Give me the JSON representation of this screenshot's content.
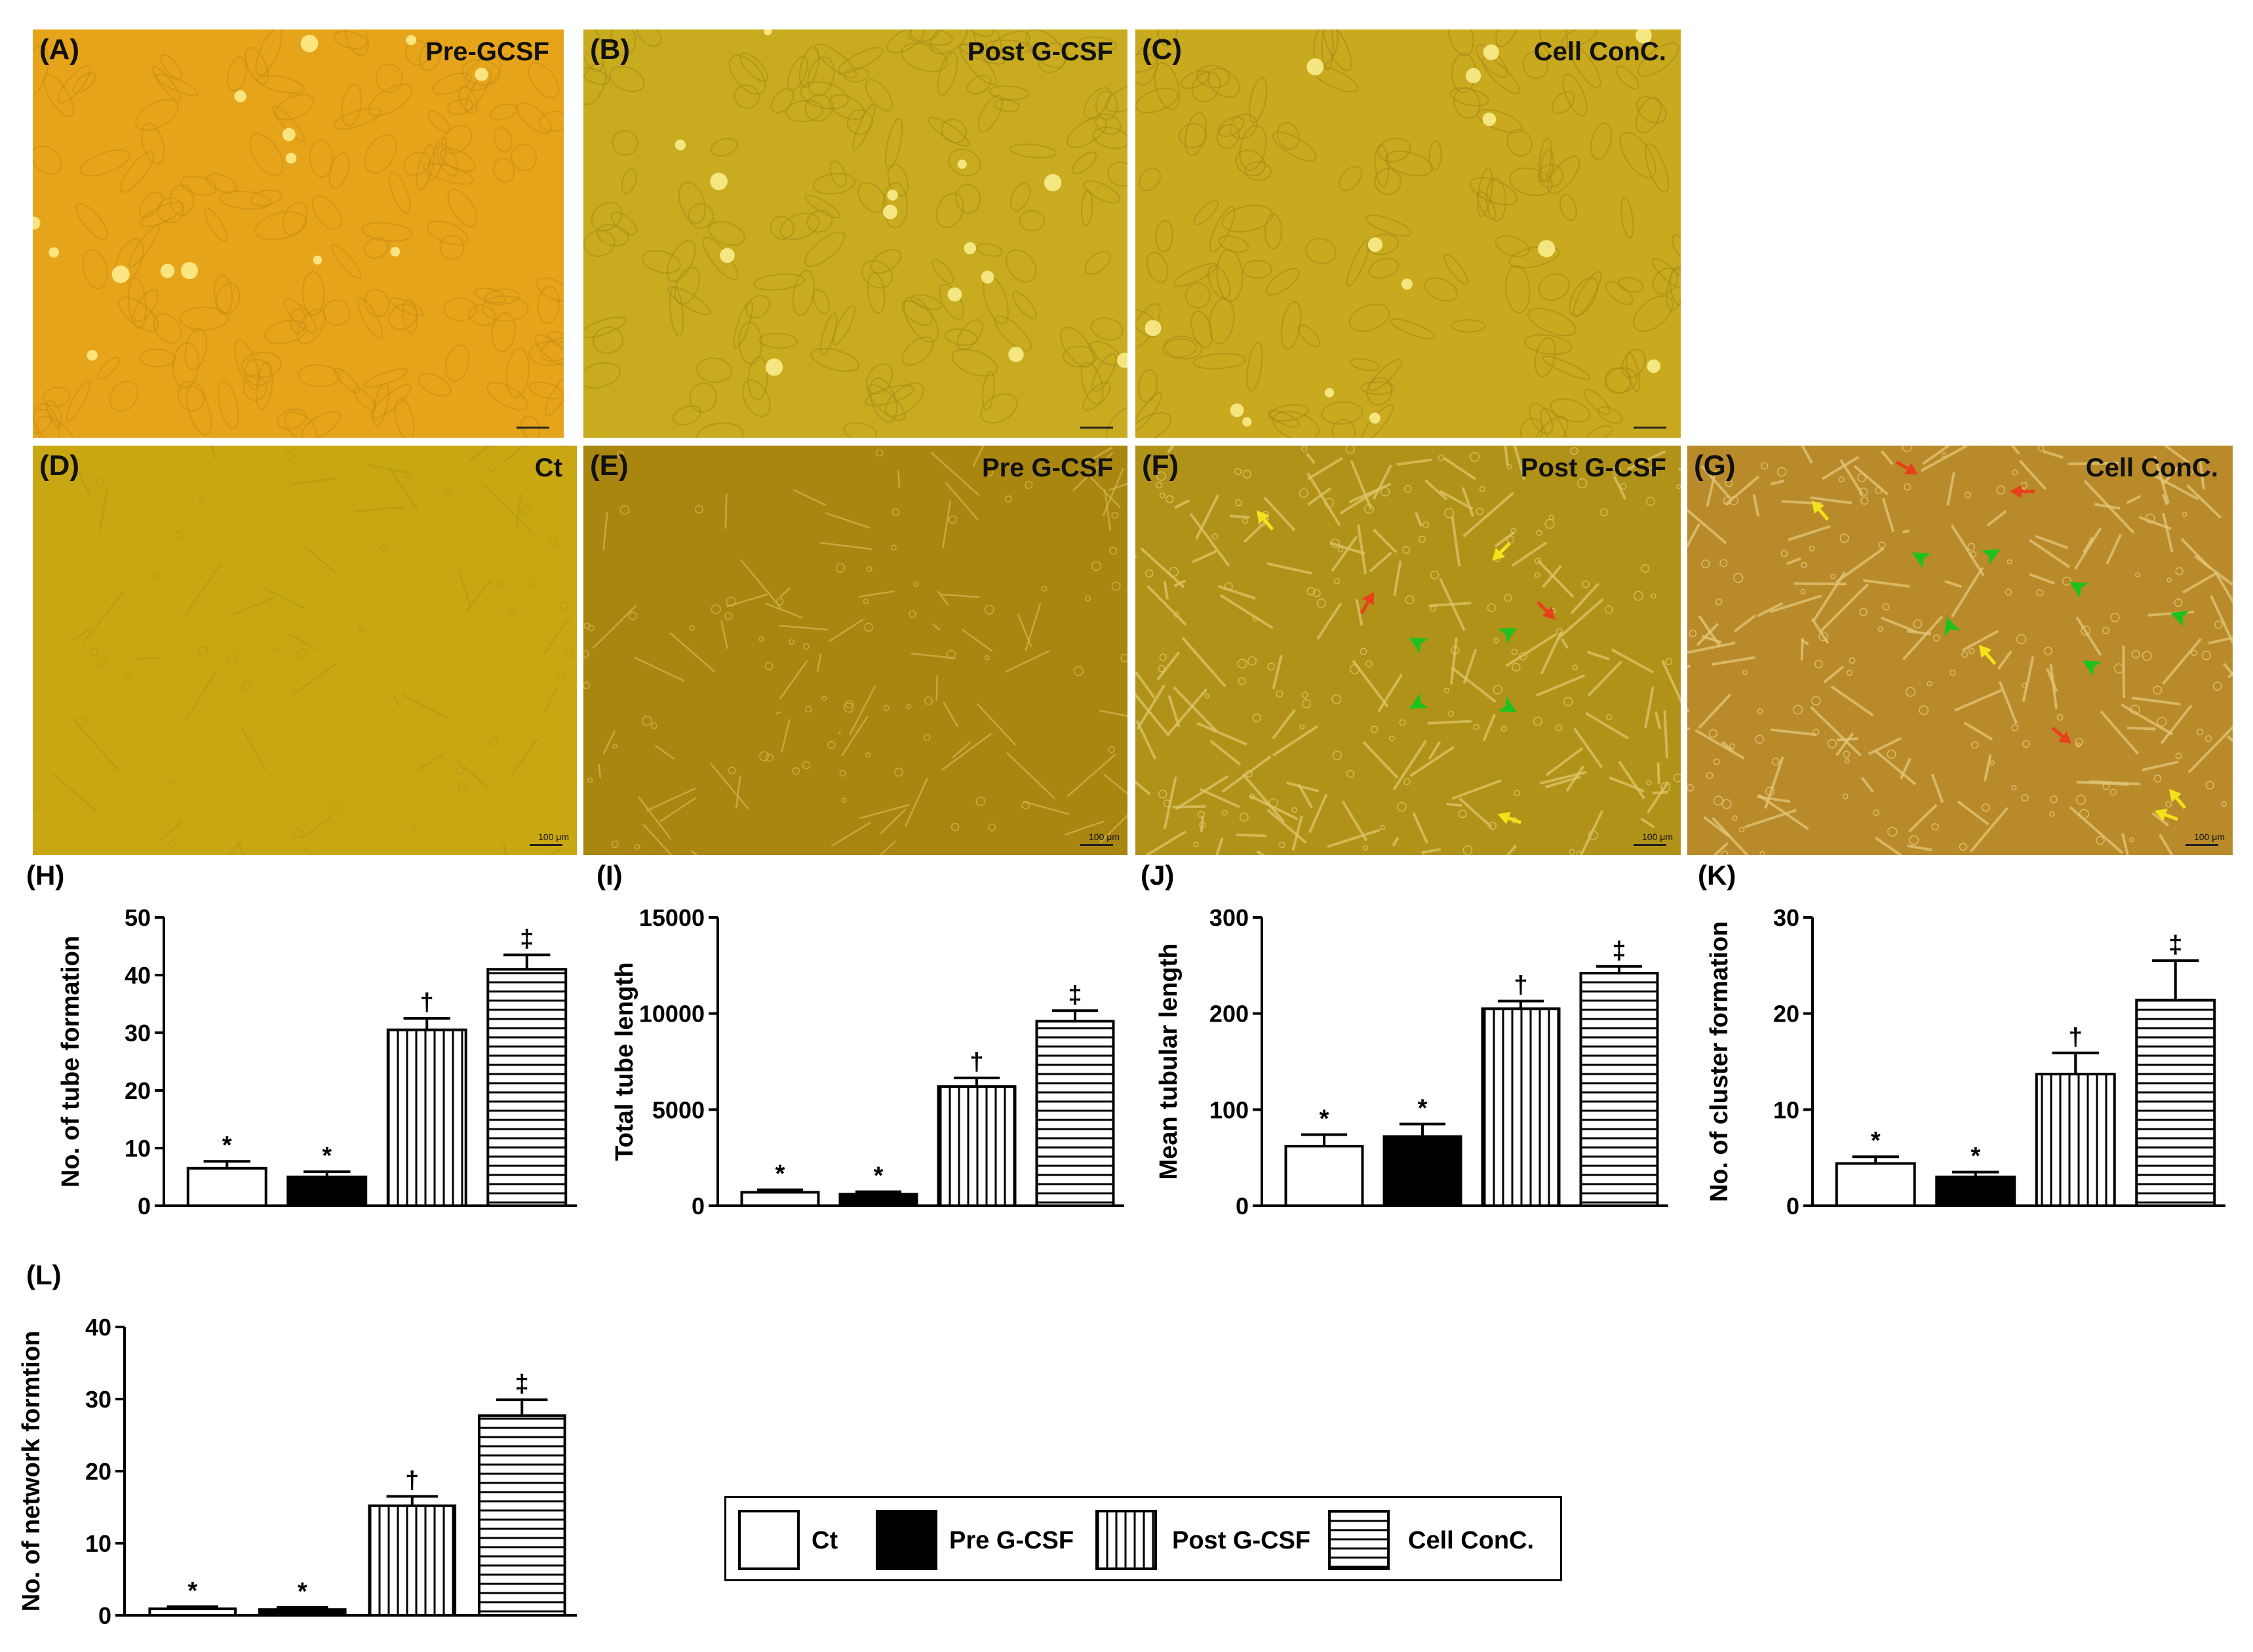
{
  "photos": [
    {
      "label": "(A)",
      "title": "Pre-GCSF",
      "scale": "",
      "bg": "#e6a41a",
      "tone": "#f3b62b",
      "cells": "#c78e18",
      "kind": "cells"
    },
    {
      "label": "(B)",
      "title": "Post G-CSF",
      "scale": "",
      "bg": "#c8ab1f",
      "tone": "#d6b92a",
      "cells": "#a88c18",
      "kind": "cells"
    },
    {
      "label": "(C)",
      "title": "Cell ConC.",
      "scale": "",
      "bg": "#c9a91e",
      "tone": "#d8ba2c",
      "cells": "#a68a17",
      "kind": "cells"
    },
    {
      "label": "(D)",
      "title": "Ct",
      "scale": "100 μm",
      "bg": "#c9a712",
      "tone": "#d4b31c",
      "cells": "#b79915",
      "kind": "tubes-sparse"
    },
    {
      "label": "(E)",
      "title": "Pre G-CSF",
      "scale": "100 μm",
      "bg": "#a88610",
      "tone": "#b8951a",
      "cells": "#d2b552",
      "kind": "tubes-mid"
    },
    {
      "label": "(F)",
      "title": "Post G-CSF",
      "scale": "100 μm",
      "bg": "#b09218",
      "tone": "#c0a028",
      "cells": "#dcc66a",
      "kind": "tubes-dense"
    },
    {
      "label": "(G)",
      "title": "Cell ConC.",
      "scale": "100 μm",
      "bg": "#b98a2a",
      "tone": "#c89a36",
      "cells": "#e2c87a",
      "kind": "tubes-dense"
    }
  ],
  "arrows": {
    "yellow": "#f2e21a",
    "red": "#e8401c",
    "green": "#1ec21e"
  },
  "categories": [
    "Ct",
    "Pre G-CSF",
    "Post G-CSF",
    "Cell ConC."
  ],
  "legend": {
    "title": "",
    "items": [
      {
        "label": "Ct",
        "pattern": "open"
      },
      {
        "label": "Pre G-CSF",
        "pattern": "solid"
      },
      {
        "label": "Post G-CSF",
        "pattern": "vertical"
      },
      {
        "label": "Cell ConC.",
        "pattern": "horizontal"
      }
    ]
  },
  "chart_data": [
    {
      "panel": "(H)",
      "type": "bar",
      "ylabel": "No. of tube formation",
      "ylim": [
        0,
        50
      ],
      "yticks": [
        "0",
        "10",
        "20",
        "30",
        "40",
        "50"
      ],
      "categories": [
        "Ct",
        "Pre G-CSF",
        "Post G-CSF",
        "Cell ConC."
      ],
      "values": [
        6.5,
        5,
        30.5,
        41
      ],
      "errors": [
        1.2,
        0.9,
        2,
        2.5
      ],
      "marks": [
        "*",
        "*",
        "†",
        "‡"
      ]
    },
    {
      "panel": "(I)",
      "type": "bar",
      "ylabel": "Total tube length",
      "ylim": [
        0,
        15000
      ],
      "yticks": [
        "0",
        "5000",
        "10000",
        "15000"
      ],
      "categories": [
        "Ct",
        "Pre G-CSF",
        "Post G-CSF",
        "Cell ConC."
      ],
      "values": [
        700,
        600,
        6200,
        9600
      ],
      "errors": [
        130,
        130,
        450,
        550
      ],
      "marks": [
        "*",
        "*",
        "†",
        "‡"
      ]
    },
    {
      "panel": "(J)",
      "type": "bar",
      "ylabel": "Mean tubular length",
      "ylim": [
        0,
        300
      ],
      "yticks": [
        "0",
        "100",
        "200",
        "300"
      ],
      "categories": [
        "Ct",
        "Pre G-CSF",
        "Post G-CSF",
        "Cell ConC."
      ],
      "values": [
        62,
        72,
        205,
        242
      ],
      "errors": [
        12,
        13,
        8,
        7
      ],
      "marks": [
        "*",
        "*",
        "†",
        "‡"
      ]
    },
    {
      "panel": "(K)",
      "type": "bar",
      "ylabel": "No. of cluster formation",
      "ylim": [
        0,
        30
      ],
      "yticks": [
        "0",
        "10",
        "20",
        "30"
      ],
      "categories": [
        "Ct",
        "Pre G-CSF",
        "Post G-CSF",
        "Cell ConC."
      ],
      "values": [
        4.4,
        3,
        13.7,
        21.4
      ],
      "errors": [
        0.7,
        0.5,
        2.2,
        4.1
      ],
      "marks": [
        "*",
        "*",
        "†",
        "‡"
      ]
    },
    {
      "panel": "(L)",
      "type": "bar",
      "ylabel": "No. of network formtion",
      "ylim": [
        0,
        40
      ],
      "yticks": [
        "0",
        "10",
        "20",
        "30",
        "40"
      ],
      "categories": [
        "Ct",
        "Pre G-CSF",
        "Post G-CSF",
        "Cell ConC."
      ],
      "values": [
        0.9,
        0.8,
        15.2,
        27.7
      ],
      "errors": [
        0.3,
        0.3,
        1.3,
        2.2
      ],
      "marks": [
        "*",
        "*",
        "†",
        "‡"
      ]
    }
  ]
}
